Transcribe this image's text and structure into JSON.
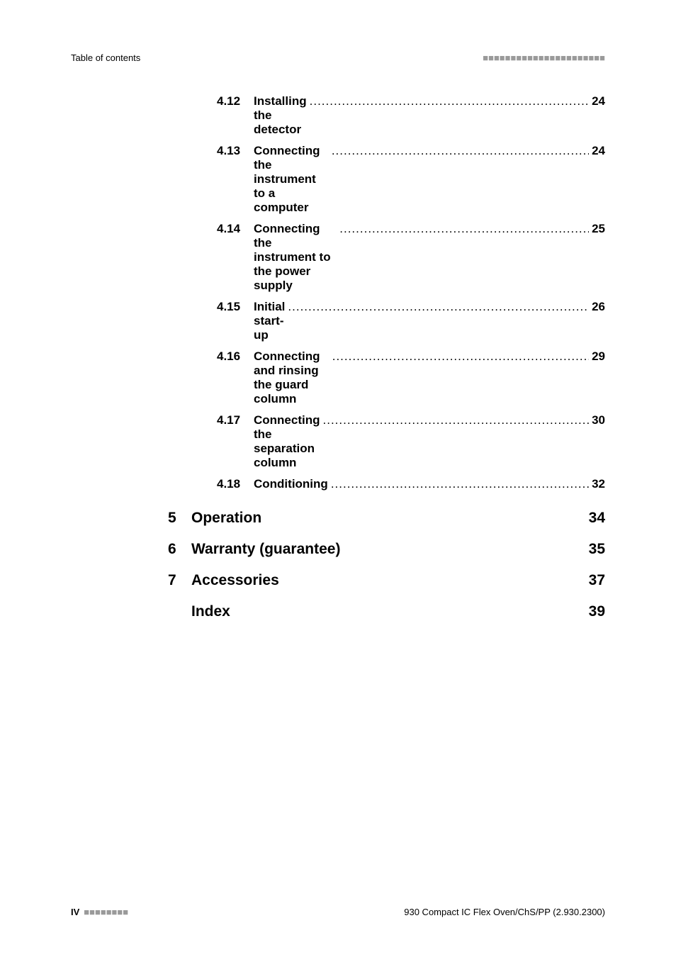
{
  "header": {
    "left": "Table of contents",
    "dash_glyph": "■■■■■■■■■■■■■■■■■■■■■■"
  },
  "toc_subsections": [
    {
      "num": "4.12",
      "title": "Installing the detector",
      "page": "24"
    },
    {
      "num": "4.13",
      "title": "Connecting the instrument to a computer",
      "page": "24"
    },
    {
      "num": "4.14",
      "title": "Connecting the instrument to the power supply",
      "page": "25"
    },
    {
      "num": "4.15",
      "title": "Initial start-up",
      "page": "26"
    },
    {
      "num": "4.16",
      "title": "Connecting and rinsing the guard column",
      "page": "29"
    },
    {
      "num": "4.17",
      "title": "Connecting the separation column",
      "page": "30"
    },
    {
      "num": "4.18",
      "title": "Conditioning",
      "page": "32"
    }
  ],
  "toc_chapters": [
    {
      "num": "5",
      "title": "Operation",
      "page": "34"
    },
    {
      "num": "6",
      "title": "Warranty (guarantee)",
      "page": "35"
    },
    {
      "num": "7",
      "title": "Accessories",
      "page": "37"
    },
    {
      "num": "",
      "title": "Index",
      "page": "39"
    }
  ],
  "footer": {
    "left_label": "IV",
    "left_dashes": "■■■■■■■■",
    "right": "930 Compact IC Flex Oven/ChS/PP (2.930.2300)"
  }
}
